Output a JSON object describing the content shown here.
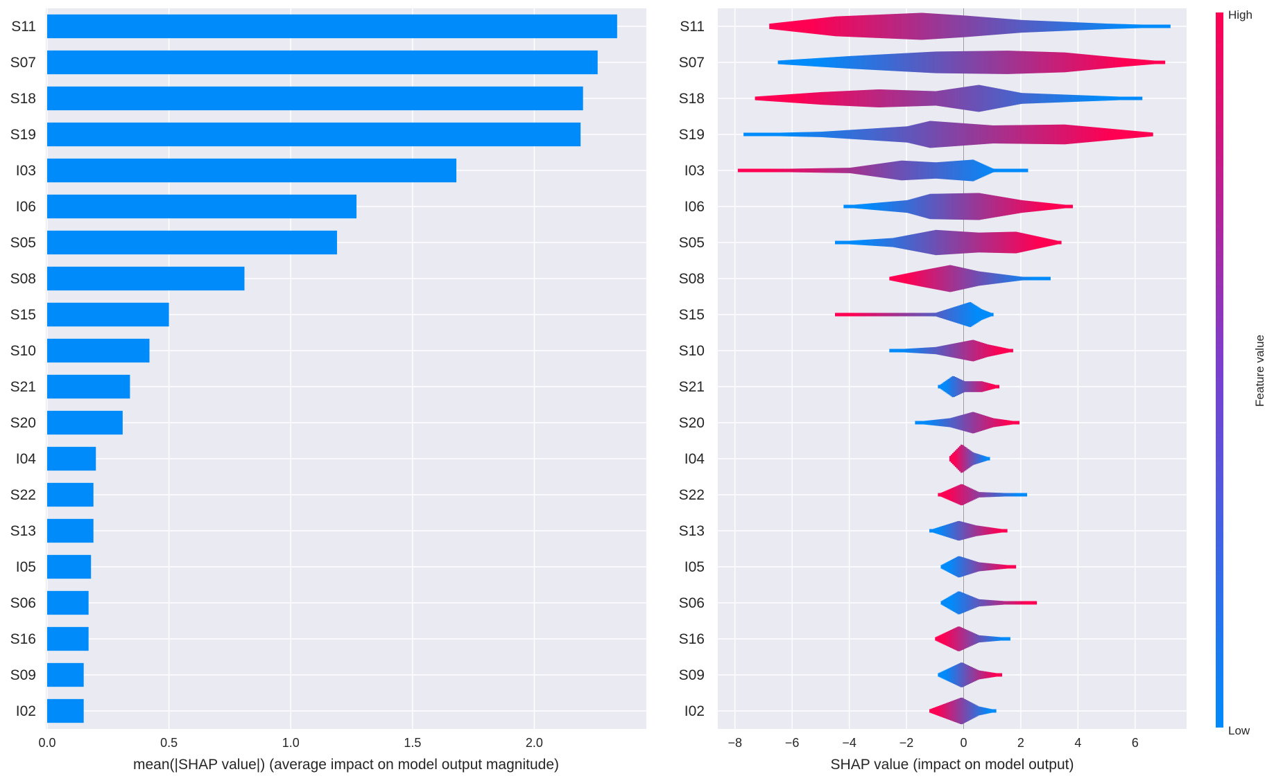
{
  "colors": {
    "panel_bg": "#eaeaf2",
    "grid": "#ffffff",
    "bar": "#008bfb",
    "low": "#008bfb",
    "high": "#ff0052",
    "mid": "#7a3fd0"
  },
  "chart_data": [
    {
      "type": "bar",
      "orientation": "horizontal",
      "title": "",
      "categories": [
        "S11",
        "S07",
        "S18",
        "S19",
        "I03",
        "I06",
        "S05",
        "S08",
        "S15",
        "S10",
        "S21",
        "S20",
        "I04",
        "S22",
        "S13",
        "I05",
        "S06",
        "S16",
        "S09",
        "I02"
      ],
      "values": [
        2.34,
        2.26,
        2.2,
        2.19,
        1.68,
        1.27,
        1.19,
        0.81,
        0.5,
        0.42,
        0.34,
        0.31,
        0.2,
        0.19,
        0.19,
        0.18,
        0.17,
        0.17,
        0.15,
        0.15
      ],
      "xlabel": "mean(|SHAP value|) (average impact on model output magnitude)",
      "ylabel": "",
      "xlim": [
        0,
        2.46
      ],
      "xticks": [
        0.0,
        0.5,
        1.0,
        1.5,
        2.0
      ],
      "xtick_labels": [
        "0.0",
        "0.5",
        "1.0",
        "1.5",
        "2.0"
      ],
      "grid": true
    },
    {
      "type": "scatter",
      "subtype": "beeswarm",
      "title": "",
      "categories": [
        "S11",
        "S07",
        "S18",
        "S19",
        "I03",
        "I06",
        "S05",
        "S08",
        "S15",
        "S10",
        "S21",
        "S20",
        "I04",
        "S22",
        "S13",
        "I05",
        "S06",
        "S16",
        "S09",
        "I02"
      ],
      "xlabel": "SHAP value (impact on model output)",
      "xlim": [
        -8.6,
        7.8
      ],
      "xticks": [
        -8,
        -6,
        -4,
        -2,
        0,
        2,
        4,
        6
      ],
      "xtick_labels": [
        "−8",
        "−6",
        "−4",
        "−2",
        "0",
        "2",
        "4",
        "6"
      ],
      "grid": true,
      "series": [
        {
          "name": "S11",
          "min": -6.8,
          "max": 7.2,
          "left_color": "high",
          "right_color": "low",
          "width": [
            [
              -6.8,
              0.15
            ],
            [
              -4.5,
              0.55
            ],
            [
              -1.5,
              0.75
            ],
            [
              0,
              0.6
            ],
            [
              2,
              0.35
            ],
            [
              5,
              0.15
            ],
            [
              7.2,
              0.05
            ]
          ]
        },
        {
          "name": "S07",
          "min": -6.5,
          "max": 7.0,
          "left_color": "low",
          "right_color": "high",
          "width": [
            [
              -6.5,
              0.1
            ],
            [
              -4,
              0.35
            ],
            [
              -1,
              0.6
            ],
            [
              1.5,
              0.65
            ],
            [
              3.5,
              0.55
            ],
            [
              5.5,
              0.25
            ],
            [
              7,
              0.05
            ]
          ]
        },
        {
          "name": "S18",
          "min": -7.3,
          "max": 6.2,
          "left_color": "high",
          "right_color": "low",
          "width": [
            [
              -7.3,
              0.1
            ],
            [
              -5,
              0.35
            ],
            [
              -3,
              0.5
            ],
            [
              -1,
              0.4
            ],
            [
              0.5,
              0.75
            ],
            [
              2,
              0.3
            ],
            [
              6.2,
              0.05
            ]
          ]
        },
        {
          "name": "S19",
          "min": -7.7,
          "max": 6.6,
          "left_color": "low",
          "right_color": "high",
          "width": [
            [
              -7.7,
              0.05
            ],
            [
              -5,
              0.15
            ],
            [
              -2,
              0.45
            ],
            [
              -1.2,
              0.75
            ],
            [
              1,
              0.5
            ],
            [
              3.5,
              0.55
            ],
            [
              6.6,
              0.1
            ]
          ]
        },
        {
          "name": "I03",
          "min": -7.9,
          "max": 2.2,
          "left_color": "high",
          "right_color": "low",
          "width": [
            [
              -7.9,
              0.05
            ],
            [
              -4,
              0.15
            ],
            [
              -2.2,
              0.55
            ],
            [
              -1,
              0.45
            ],
            [
              0.3,
              0.6
            ],
            [
              1,
              0.1
            ],
            [
              2.2,
              0.05
            ]
          ]
        },
        {
          "name": "I06",
          "min": -4.2,
          "max": 3.8,
          "left_color": "low",
          "right_color": "high",
          "width": [
            [
              -4.2,
              0.05
            ],
            [
              -2,
              0.35
            ],
            [
              -1.2,
              0.7
            ],
            [
              0.5,
              0.75
            ],
            [
              2,
              0.35
            ],
            [
              3.8,
              0.05
            ]
          ]
        },
        {
          "name": "S05",
          "min": -4.5,
          "max": 3.4,
          "left_color": "low",
          "right_color": "high",
          "width": [
            [
              -4.5,
              0.05
            ],
            [
              -2.5,
              0.25
            ],
            [
              -1,
              0.7
            ],
            [
              0.5,
              0.55
            ],
            [
              1.8,
              0.6
            ],
            [
              3.4,
              0.05
            ]
          ]
        },
        {
          "name": "S08",
          "min": -2.6,
          "max": 3.0,
          "left_color": "high",
          "right_color": "low",
          "width": [
            [
              -2.6,
              0.1
            ],
            [
              -1.5,
              0.45
            ],
            [
              -0.5,
              0.75
            ],
            [
              0.5,
              0.4
            ],
            [
              2,
              0.1
            ],
            [
              3,
              0.05
            ]
          ]
        },
        {
          "name": "S15",
          "min": -4.5,
          "max": 1.0,
          "left_color": "high",
          "right_color": "low",
          "width": [
            [
              -4.5,
              0.05
            ],
            [
              -1,
              0.1
            ],
            [
              0.2,
              0.7
            ],
            [
              0.6,
              0.3
            ],
            [
              1.0,
              0.05
            ]
          ]
        },
        {
          "name": "S10",
          "min": -2.6,
          "max": 1.7,
          "left_color": "low",
          "right_color": "high",
          "width": [
            [
              -2.6,
              0.05
            ],
            [
              -1,
              0.2
            ],
            [
              0.3,
              0.6
            ],
            [
              0.8,
              0.35
            ],
            [
              1.7,
              0.05
            ]
          ]
        },
        {
          "name": "S21",
          "min": -0.9,
          "max": 1.2,
          "left_color": "low",
          "right_color": "high",
          "width": [
            [
              -0.9,
              0.05
            ],
            [
              -0.4,
              0.6
            ],
            [
              0,
              0.3
            ],
            [
              0.6,
              0.3
            ],
            [
              1.2,
              0.05
            ]
          ]
        },
        {
          "name": "S20",
          "min": -1.7,
          "max": 1.9,
          "left_color": "low",
          "right_color": "high",
          "width": [
            [
              -1.7,
              0.05
            ],
            [
              -0.5,
              0.25
            ],
            [
              0.3,
              0.6
            ],
            [
              1,
              0.25
            ],
            [
              1.9,
              0.05
            ]
          ]
        },
        {
          "name": "I04",
          "min": -0.5,
          "max": 0.9,
          "left_color": "high",
          "right_color": "low",
          "width": [
            [
              -0.5,
              0.15
            ],
            [
              -0.1,
              0.8
            ],
            [
              0.3,
              0.35
            ],
            [
              0.9,
              0.05
            ]
          ]
        },
        {
          "name": "S22",
          "min": -0.9,
          "max": 2.2,
          "left_color": "high",
          "right_color": "low",
          "width": [
            [
              -0.9,
              0.05
            ],
            [
              -0.1,
              0.6
            ],
            [
              0.5,
              0.15
            ],
            [
              2.2,
              0.05
            ]
          ]
        },
        {
          "name": "S13",
          "min": -1.2,
          "max": 1.5,
          "left_color": "low",
          "right_color": "high",
          "width": [
            [
              -1.2,
              0.05
            ],
            [
              -0.2,
              0.55
            ],
            [
              0.4,
              0.3
            ],
            [
              1.5,
              0.05
            ]
          ]
        },
        {
          "name": "I05",
          "min": -0.8,
          "max": 1.8,
          "left_color": "low",
          "right_color": "high",
          "width": [
            [
              -0.8,
              0.1
            ],
            [
              -0.2,
              0.6
            ],
            [
              0.5,
              0.25
            ],
            [
              1.8,
              0.05
            ]
          ]
        },
        {
          "name": "S06",
          "min": -0.8,
          "max": 2.5,
          "left_color": "low",
          "right_color": "high",
          "width": [
            [
              -0.8,
              0.1
            ],
            [
              -0.2,
              0.65
            ],
            [
              0.5,
              0.2
            ],
            [
              1.8,
              0.05
            ],
            [
              2.5,
              0.05
            ]
          ]
        },
        {
          "name": "S16",
          "min": -1.0,
          "max": 1.6,
          "left_color": "high",
          "right_color": "low",
          "width": [
            [
              -1.0,
              0.1
            ],
            [
              -0.2,
              0.7
            ],
            [
              0.5,
              0.2
            ],
            [
              1.6,
              0.05
            ]
          ]
        },
        {
          "name": "S09",
          "min": -0.9,
          "max": 1.3,
          "left_color": "low",
          "right_color": "high",
          "width": [
            [
              -0.9,
              0.1
            ],
            [
              -0.1,
              0.7
            ],
            [
              0.5,
              0.25
            ],
            [
              1.3,
              0.05
            ]
          ]
        },
        {
          "name": "I02",
          "min": -1.2,
          "max": 1.1,
          "left_color": "high",
          "right_color": "low",
          "width": [
            [
              -1.2,
              0.1
            ],
            [
              -0.1,
              0.75
            ],
            [
              0.5,
              0.25
            ],
            [
              1.1,
              0.05
            ]
          ]
        }
      ]
    }
  ],
  "colorbar": {
    "high_label": "High",
    "low_label": "Low",
    "title": "Feature value"
  }
}
